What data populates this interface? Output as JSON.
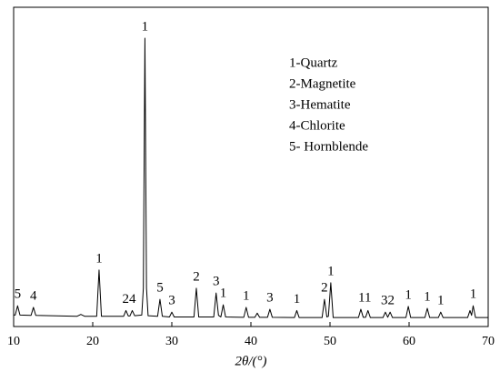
{
  "chart_data": {
    "type": "line",
    "xlabel": "2θ/(°)",
    "xlim": [
      10,
      70
    ],
    "xticks": [
      10,
      20,
      30,
      40,
      50,
      60,
      70
    ],
    "ylim": [
      0,
      100
    ],
    "x": [
      10,
      10.2,
      10.5,
      10.8,
      12.2,
      12.5,
      12.8,
      18,
      18.5,
      19,
      20.5,
      20.8,
      21.1,
      23.9,
      24.2,
      24.5,
      24.7,
      25.0,
      25.3,
      26.2,
      26.4,
      26.6,
      26.8,
      27.0,
      28.2,
      28.5,
      28.8,
      29.7,
      30.0,
      30.3,
      32.8,
      33.1,
      33.4,
      35.3,
      35.6,
      35.9,
      36.2,
      36.5,
      36.8,
      39.1,
      39.4,
      39.7,
      40.5,
      40.8,
      41.1,
      42.1,
      42.4,
      42.7,
      45.5,
      45.8,
      46.1,
      49.0,
      49.3,
      49.6,
      49.8,
      50.1,
      50.4,
      53.6,
      53.9,
      54.2,
      54.5,
      54.8,
      55.1,
      56.7,
      57.0,
      57.3,
      57.6,
      57.9,
      59.6,
      59.9,
      60.2,
      62.0,
      62.3,
      62.6,
      63.7,
      64.0,
      64.3,
      67.4,
      67.7,
      67.9,
      68.1,
      68.4,
      70
    ],
    "series": [
      {
        "color": "#000000",
        "values": [
          3.6,
          3.6,
          6.5,
          3.6,
          3.5,
          6,
          3.5,
          3.2,
          3.8,
          3.2,
          3.2,
          17.7,
          3.2,
          3.2,
          5,
          3.3,
          3.3,
          5,
          3.4,
          3.6,
          12,
          90.3,
          12,
          3.4,
          3.2,
          8.5,
          3.2,
          3,
          4.5,
          3,
          3,
          12,
          3,
          3,
          10.5,
          3.5,
          3,
          6.8,
          3,
          2.9,
          6,
          2.9,
          2.9,
          4.2,
          2.9,
          2.9,
          5.4,
          2.9,
          2.8,
          5,
          2.8,
          2.8,
          8.5,
          3,
          3.2,
          13.7,
          2.8,
          2.8,
          5.4,
          2.9,
          2.9,
          5,
          2.8,
          2.8,
          4.5,
          2.9,
          4.5,
          2.8,
          2.8,
          6.3,
          2.8,
          2.8,
          5.7,
          2.8,
          2.8,
          4.5,
          2.8,
          2.8,
          5,
          3.5,
          6.5,
          2.8,
          2.8
        ]
      }
    ],
    "annotations": [
      {
        "text": "5",
        "x": 10.5
      },
      {
        "text": "4",
        "x": 12.5
      },
      {
        "text": "1",
        "x": 20.8
      },
      {
        "text": "24",
        "x": 24.6
      },
      {
        "text": "1",
        "x": 26.6
      },
      {
        "text": "5",
        "x": 28.5
      },
      {
        "text": "3",
        "x": 30.0
      },
      {
        "text": "2",
        "x": 33.1
      },
      {
        "text": "3",
        "x": 35.6
      },
      {
        "text": "1",
        "x": 36.5
      },
      {
        "text": "1",
        "x": 39.4
      },
      {
        "text": "3",
        "x": 42.4
      },
      {
        "text": "1",
        "x": 45.8
      },
      {
        "text": "2",
        "x": 49.3
      },
      {
        "text": "1",
        "x": 50.1
      },
      {
        "text": "11",
        "x": 54.4
      },
      {
        "text": "32",
        "x": 57.3
      },
      {
        "text": "1",
        "x": 59.9
      },
      {
        "text": "1",
        "x": 62.3
      },
      {
        "text": "1",
        "x": 64.0
      },
      {
        "text": "1",
        "x": 68.1
      }
    ],
    "key": [
      "1-Quartz",
      "2-Magnetite",
      "3-Hematite",
      "4-Chlorite",
      "5- Hornblende"
    ]
  }
}
